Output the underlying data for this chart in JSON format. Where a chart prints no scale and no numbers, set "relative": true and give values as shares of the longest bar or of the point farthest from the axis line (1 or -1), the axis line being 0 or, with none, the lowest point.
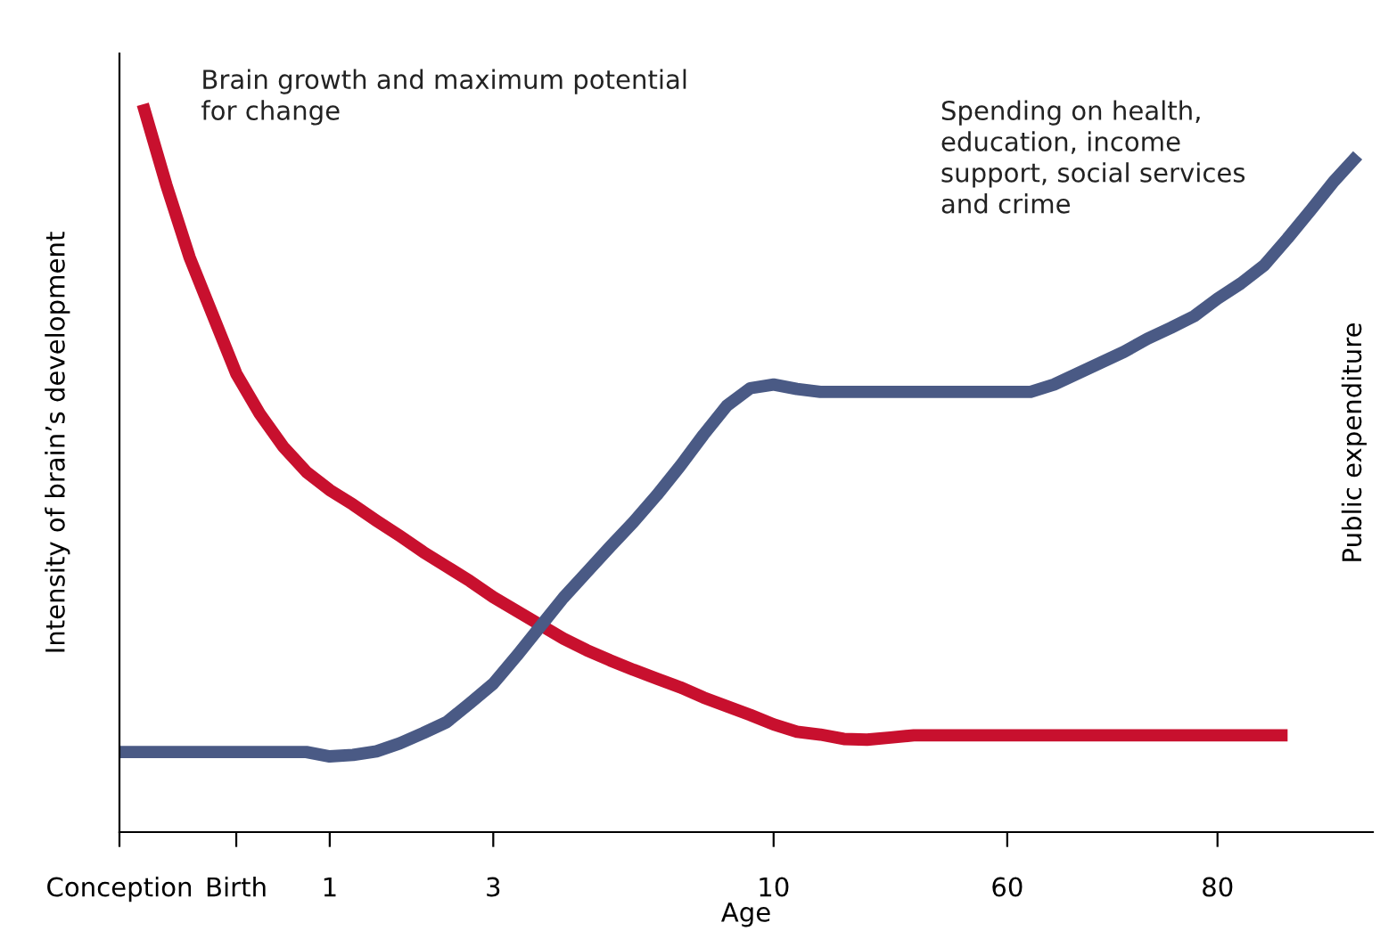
{
  "chart_data": {
    "type": "line",
    "relative": true,
    "xlabel": "Age",
    "ylabel": "Intensity of brain’s development",
    "y2label": "Public expenditure",
    "categories": [
      "Conception",
      null,
      null,
      null,
      null,
      "Birth",
      null,
      null,
      null,
      "1",
      null,
      null,
      null,
      null,
      null,
      null,
      "3",
      null,
      null,
      null,
      null,
      null,
      null,
      null,
      null,
      null,
      null,
      null,
      "10",
      null,
      null,
      null,
      null,
      null,
      null,
      null,
      null,
      null,
      "60",
      null,
      null,
      null,
      null,
      null,
      null,
      null,
      null,
      "80",
      null,
      null,
      null,
      null,
      null,
      null
    ],
    "grid": false,
    "legend": false,
    "series": [
      {
        "name": "Brain growth and maximum potential\nfor change",
        "color": "#c8102e",
        "values": [
          null,
          1.0,
          0.89,
          0.79,
          0.71,
          0.63,
          0.575,
          0.53,
          0.495,
          0.47,
          0.45,
          0.428,
          0.407,
          0.385,
          0.365,
          0.345,
          0.323,
          0.304,
          0.285,
          0.266,
          0.25,
          0.236,
          0.223,
          0.211,
          0.199,
          0.185,
          0.173,
          0.161,
          0.148,
          0.138,
          0.134,
          0.128,
          0.127,
          0.13,
          0.133,
          0.133,
          0.133,
          0.133,
          0.133,
          0.133,
          0.133,
          0.133,
          0.133,
          0.133,
          0.133,
          0.133,
          0.133,
          0.133,
          0.133,
          0.133,
          0.133,
          null,
          null,
          null
        ]
      },
      {
        "name": "Spending on health,\neducation, income\nsupport, social services\nand crime",
        "color": "#4a5a85",
        "values": [
          0.11,
          0.11,
          0.11,
          0.11,
          0.11,
          0.11,
          0.11,
          0.11,
          0.11,
          0.104,
          0.106,
          0.111,
          0.122,
          0.136,
          0.151,
          0.177,
          0.204,
          0.242,
          0.282,
          0.322,
          0.357,
          0.392,
          0.426,
          0.463,
          0.503,
          0.546,
          0.586,
          0.61,
          0.615,
          0.609,
          0.605,
          0.605,
          0.605,
          0.605,
          0.605,
          0.605,
          0.605,
          0.605,
          0.605,
          0.605,
          0.615,
          0.63,
          0.645,
          0.66,
          0.678,
          0.693,
          0.709,
          0.733,
          0.754,
          0.779,
          0.816,
          0.855,
          0.895,
          0.93
        ]
      }
    ]
  }
}
